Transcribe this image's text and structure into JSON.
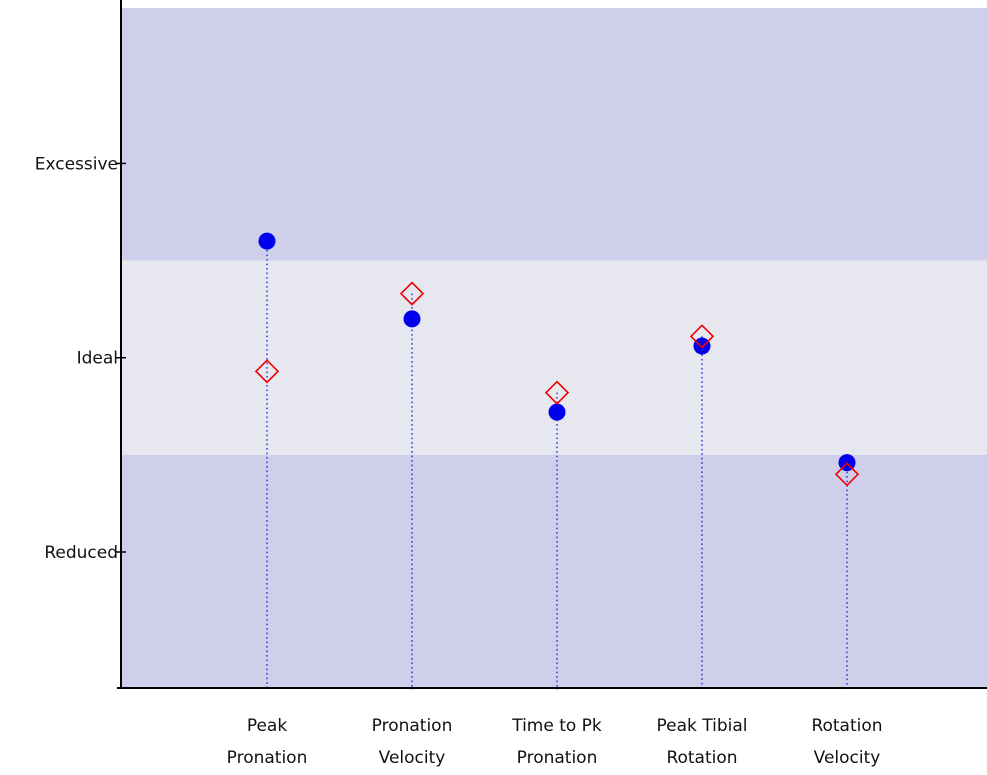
{
  "chart_data": {
    "type": "scatter",
    "categories": [
      "Peak\nPronation",
      "Pronation\nVelocity",
      "Time to Pk\nPronation",
      "Peak Tibial\nRotation",
      "Rotation\nVelocity"
    ],
    "y_tick_labels": [
      {
        "label": "Excessive",
        "value": 1
      },
      {
        "label": "Ideal",
        "value": 0
      },
      {
        "label": "Reduced",
        "value": -1
      }
    ],
    "ylim": [
      -1.7,
      1.8
    ],
    "bands": [
      {
        "from": 0.5,
        "to": 1.8,
        "color": "#cfcfeb"
      },
      {
        "from": -0.5,
        "to": 0.5,
        "color": "#e7e7ef"
      },
      {
        "from": -1.7,
        "to": -0.5,
        "color": "#cfcfeb"
      }
    ],
    "series": [
      {
        "marker": "circle",
        "color": "#0000ee",
        "values": [
          0.6,
          0.2,
          -0.28,
          0.06,
          -0.54
        ]
      },
      {
        "marker": "diamond",
        "color": "#ee0000",
        "values": [
          -0.07,
          0.33,
          -0.18,
          0.11,
          -0.6
        ]
      }
    ],
    "stem_color": "#0000ee",
    "axis_color": "#000000"
  }
}
